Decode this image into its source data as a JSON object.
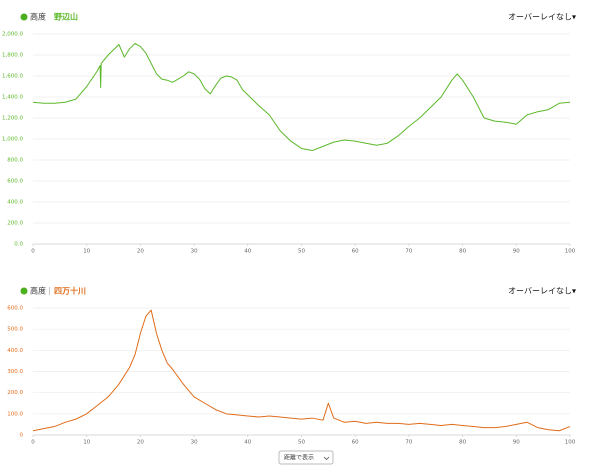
{
  "chart_data": [
    {
      "type": "line",
      "legend_label": "高度",
      "overlay_menu": "オーバーレイなし▾",
      "x": [
        0,
        2,
        4,
        6,
        8,
        10,
        12,
        12.5,
        12.6,
        12.7,
        14,
        15,
        16,
        17,
        18,
        19,
        20,
        21,
        22,
        23,
        24,
        25,
        26,
        27,
        28,
        29,
        30,
        31,
        32,
        33,
        34,
        35,
        36,
        37,
        38,
        39,
        40,
        42,
        44,
        46,
        48,
        50,
        52,
        54,
        56,
        58,
        60,
        62,
        64,
        66,
        68,
        70,
        72,
        74,
        76,
        78,
        79,
        80,
        82,
        84,
        86,
        88,
        90,
        92,
        94,
        96,
        98,
        100
      ],
      "series": [
        {
          "name": "野辺山",
          "color": "#5cb82a",
          "values": [
            1350,
            1340,
            1340,
            1350,
            1380,
            1500,
            1650,
            1700,
            1490,
            1720,
            1800,
            1850,
            1900,
            1780,
            1860,
            1910,
            1880,
            1820,
            1720,
            1620,
            1570,
            1560,
            1540,
            1570,
            1600,
            1640,
            1620,
            1570,
            1480,
            1430,
            1510,
            1580,
            1600,
            1590,
            1560,
            1470,
            1420,
            1320,
            1230,
            1080,
            980,
            910,
            890,
            930,
            970,
            990,
            980,
            960,
            940,
            960,
            1030,
            1120,
            1200,
            1300,
            1400,
            1560,
            1620,
            1560,
            1400,
            1200,
            1170,
            1160,
            1140,
            1230,
            1260,
            1280,
            1340,
            1350
          ]
        }
      ],
      "xlim": [
        0,
        100
      ],
      "xticks": [
        0,
        10,
        20,
        30,
        40,
        50,
        60,
        70,
        80,
        90,
        100
      ],
      "ylim": [
        0,
        2000
      ],
      "yticks": [
        {
          "value": 0,
          "label": "0.0"
        },
        {
          "value": 200,
          "label": "200.0"
        },
        {
          "value": 400,
          "label": "400.0"
        },
        {
          "value": 600,
          "label": "600.0"
        },
        {
          "value": 800,
          "label": "800.0"
        },
        {
          "value": 1000,
          "label": "1,000.0"
        },
        {
          "value": 1200,
          "label": "1,200.0"
        },
        {
          "value": 1400,
          "label": "1,400.0"
        },
        {
          "value": 1600,
          "label": "1,600.0"
        },
        {
          "value": 1800,
          "label": "1,800.0"
        },
        {
          "value": 2000,
          "label": "2,000.0"
        }
      ],
      "grid": true
    },
    {
      "type": "line",
      "legend_label": "高度",
      "overlay_menu": "オーバーレイなし▾",
      "x": [
        0,
        2,
        4,
        6,
        8,
        10,
        12,
        14,
        16,
        18,
        19,
        20,
        21,
        22,
        23,
        24,
        25,
        26,
        28,
        30,
        32,
        34,
        36,
        38,
        40,
        42,
        44,
        46,
        48,
        50,
        52,
        54,
        55,
        56,
        58,
        60,
        62,
        64,
        66,
        68,
        70,
        72,
        74,
        76,
        78,
        80,
        82,
        84,
        86,
        88,
        90,
        92,
        94,
        96,
        98,
        100
      ],
      "series": [
        {
          "name": "四万十川",
          "color": "#e06c1a",
          "values": [
            20,
            30,
            40,
            60,
            75,
            100,
            140,
            180,
            240,
            320,
            380,
            480,
            560,
            590,
            480,
            400,
            340,
            310,
            240,
            180,
            150,
            120,
            100,
            95,
            90,
            85,
            90,
            85,
            80,
            75,
            80,
            70,
            150,
            80,
            60,
            65,
            55,
            60,
            55,
            55,
            50,
            55,
            50,
            45,
            50,
            45,
            40,
            35,
            35,
            40,
            50,
            60,
            35,
            25,
            20,
            40
          ]
        }
      ],
      "xlim": [
        0,
        100
      ],
      "xticks": [
        0,
        10,
        20,
        30,
        40,
        50,
        60,
        70,
        80,
        90,
        100
      ],
      "ylim": [
        0,
        600
      ],
      "yticks": [
        0,
        {
          "value": 100,
          "label": "100.0"
        },
        {
          "value": 200,
          "label": "200.0"
        },
        {
          "value": 300,
          "label": "300.0"
        },
        {
          "value": 400,
          "label": "400.0"
        },
        {
          "value": 500,
          "label": "500.0"
        },
        {
          "value": 600,
          "label": "600.0"
        }
      ],
      "grid": true
    }
  ],
  "display_mode": "距離で表示"
}
